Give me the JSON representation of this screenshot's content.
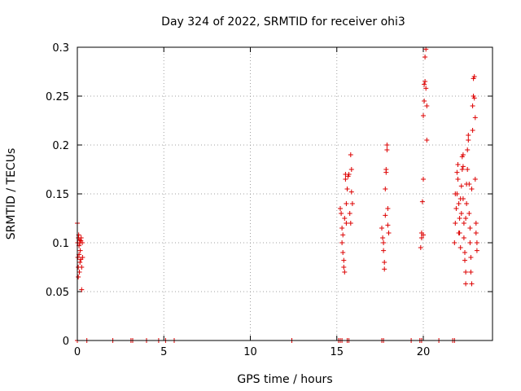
{
  "chart_data": {
    "type": "scatter",
    "title": "Day 324 of 2022, SRMTID for receiver ohi3",
    "xlabel": "GPS time / hours",
    "ylabel": "SRMTID / TECUs",
    "xlim": [
      0,
      24
    ],
    "ylim": [
      0,
      0.3
    ],
    "xticks": [
      0,
      5,
      10,
      15,
      20
    ],
    "xtick_labels": [
      "0",
      "5",
      "10",
      "15",
      "20"
    ],
    "yticks": [
      0,
      0.05,
      0.1,
      0.15,
      0.2,
      0.25,
      0.3
    ],
    "ytick_labels": [
      "0",
      "0.05",
      "0.1",
      "0.15",
      "0.2",
      "0.25",
      "0.3"
    ],
    "grid": true,
    "marker_color": "#dd0000",
    "marker": "plus",
    "series": [
      {
        "name": "SRMTID",
        "points": [
          [
            0.0,
            0.12
          ],
          [
            0.02,
            0.1
          ],
          [
            0.03,
            0.085
          ],
          [
            0.05,
            0.065
          ],
          [
            0.05,
            0.075
          ],
          [
            0.06,
            0.105
          ],
          [
            0.08,
            0.108
          ],
          [
            0.1,
            0.097
          ],
          [
            0.1,
            0.088
          ],
          [
            0.12,
            0.07
          ],
          [
            0.13,
            0.103
          ],
          [
            0.15,
            0.1
          ],
          [
            0.15,
            0.08
          ],
          [
            0.17,
            0.092
          ],
          [
            0.2,
            0.083
          ],
          [
            0.2,
            0.102
          ],
          [
            0.22,
            0.105
          ],
          [
            0.25,
            0.075
          ],
          [
            0.25,
            0.052
          ],
          [
            0.28,
            0.1
          ],
          [
            0.3,
            0.085
          ],
          [
            0.0,
            0.0
          ],
          [
            0.55,
            0.0
          ],
          [
            2.05,
            0.0
          ],
          [
            3.1,
            0.0
          ],
          [
            3.2,
            0.0
          ],
          [
            4.0,
            0.0
          ],
          [
            4.7,
            0.0
          ],
          [
            5.1,
            0.0
          ],
          [
            5.6,
            0.0
          ],
          [
            12.4,
            0.0
          ],
          [
            15.1,
            0.0
          ],
          [
            15.2,
            0.0
          ],
          [
            15.3,
            0.0
          ],
          [
            15.6,
            0.0
          ],
          [
            15.7,
            0.0
          ],
          [
            17.6,
            0.0
          ],
          [
            17.7,
            0.0
          ],
          [
            19.3,
            0.0
          ],
          [
            19.8,
            0.0
          ],
          [
            19.9,
            0.0
          ],
          [
            20.9,
            0.0
          ],
          [
            21.7,
            0.0
          ],
          [
            21.8,
            0.0
          ],
          [
            15.2,
            0.135
          ],
          [
            15.25,
            0.13
          ],
          [
            15.3,
            0.115
          ],
          [
            15.3,
            0.1
          ],
          [
            15.35,
            0.108
          ],
          [
            15.35,
            0.09
          ],
          [
            15.4,
            0.082
          ],
          [
            15.4,
            0.075
          ],
          [
            15.45,
            0.07
          ],
          [
            15.45,
            0.125
          ],
          [
            15.5,
            0.165
          ],
          [
            15.5,
            0.17
          ],
          [
            15.55,
            0.14
          ],
          [
            15.55,
            0.12
          ],
          [
            15.6,
            0.155
          ],
          [
            15.65,
            0.168
          ],
          [
            15.7,
            0.17
          ],
          [
            15.75,
            0.13
          ],
          [
            15.8,
            0.12
          ],
          [
            15.8,
            0.19
          ],
          [
            15.85,
            0.175
          ],
          [
            15.85,
            0.152
          ],
          [
            15.9,
            0.14
          ],
          [
            17.6,
            0.115
          ],
          [
            17.65,
            0.105
          ],
          [
            17.7,
            0.1
          ],
          [
            17.7,
            0.092
          ],
          [
            17.75,
            0.08
          ],
          [
            17.75,
            0.073
          ],
          [
            17.8,
            0.128
          ],
          [
            17.8,
            0.155
          ],
          [
            17.85,
            0.172
          ],
          [
            17.85,
            0.175
          ],
          [
            17.9,
            0.2
          ],
          [
            17.9,
            0.195
          ],
          [
            17.95,
            0.135
          ],
          [
            17.95,
            0.118
          ],
          [
            18.0,
            0.11
          ],
          [
            19.85,
            0.095
          ],
          [
            19.9,
            0.105
          ],
          [
            19.9,
            0.11
          ],
          [
            19.95,
            0.142
          ],
          [
            20.0,
            0.165
          ],
          [
            20.0,
            0.23
          ],
          [
            20.05,
            0.245
          ],
          [
            20.05,
            0.262
          ],
          [
            20.1,
            0.265
          ],
          [
            20.1,
            0.29
          ],
          [
            20.15,
            0.298
          ],
          [
            20.15,
            0.258
          ],
          [
            20.2,
            0.24
          ],
          [
            20.2,
            0.205
          ],
          [
            20.0,
            0.108
          ],
          [
            21.8,
            0.1
          ],
          [
            21.85,
            0.12
          ],
          [
            21.9,
            0.135
          ],
          [
            21.95,
            0.15
          ],
          [
            22.0,
            0.165
          ],
          [
            22.0,
            0.18
          ],
          [
            22.05,
            0.14
          ],
          [
            22.1,
            0.125
          ],
          [
            22.1,
            0.11
          ],
          [
            22.15,
            0.095
          ],
          [
            22.2,
            0.13
          ],
          [
            22.2,
            0.158
          ],
          [
            22.25,
            0.175
          ],
          [
            22.25,
            0.188
          ],
          [
            22.3,
            0.19
          ],
          [
            22.3,
            0.145
          ],
          [
            22.35,
            0.12
          ],
          [
            22.35,
            0.105
          ],
          [
            22.4,
            0.09
          ],
          [
            22.4,
            0.082
          ],
          [
            22.45,
            0.07
          ],
          [
            22.45,
            0.058
          ],
          [
            22.5,
            0.14
          ],
          [
            22.5,
            0.16
          ],
          [
            22.55,
            0.175
          ],
          [
            22.55,
            0.195
          ],
          [
            22.6,
            0.21
          ],
          [
            22.6,
            0.205
          ],
          [
            22.65,
            0.16
          ],
          [
            22.65,
            0.13
          ],
          [
            22.7,
            0.115
          ],
          [
            22.7,
            0.1
          ],
          [
            22.75,
            0.085
          ],
          [
            22.75,
            0.07
          ],
          [
            22.8,
            0.058
          ],
          [
            22.8,
            0.155
          ],
          [
            22.85,
            0.215
          ],
          [
            22.85,
            0.24
          ],
          [
            22.9,
            0.25
          ],
          [
            22.9,
            0.268
          ],
          [
            22.95,
            0.27
          ],
          [
            22.95,
            0.248
          ],
          [
            23.0,
            0.228
          ],
          [
            23.0,
            0.165
          ],
          [
            23.05,
            0.12
          ],
          [
            23.05,
            0.11
          ],
          [
            23.1,
            0.1
          ],
          [
            23.1,
            0.092
          ],
          [
            21.85,
            0.15
          ],
          [
            21.95,
            0.172
          ],
          [
            22.05,
            0.11
          ],
          [
            22.15,
            0.145
          ],
          [
            22.3,
            0.178
          ],
          [
            22.45,
            0.125
          ]
        ]
      }
    ]
  }
}
